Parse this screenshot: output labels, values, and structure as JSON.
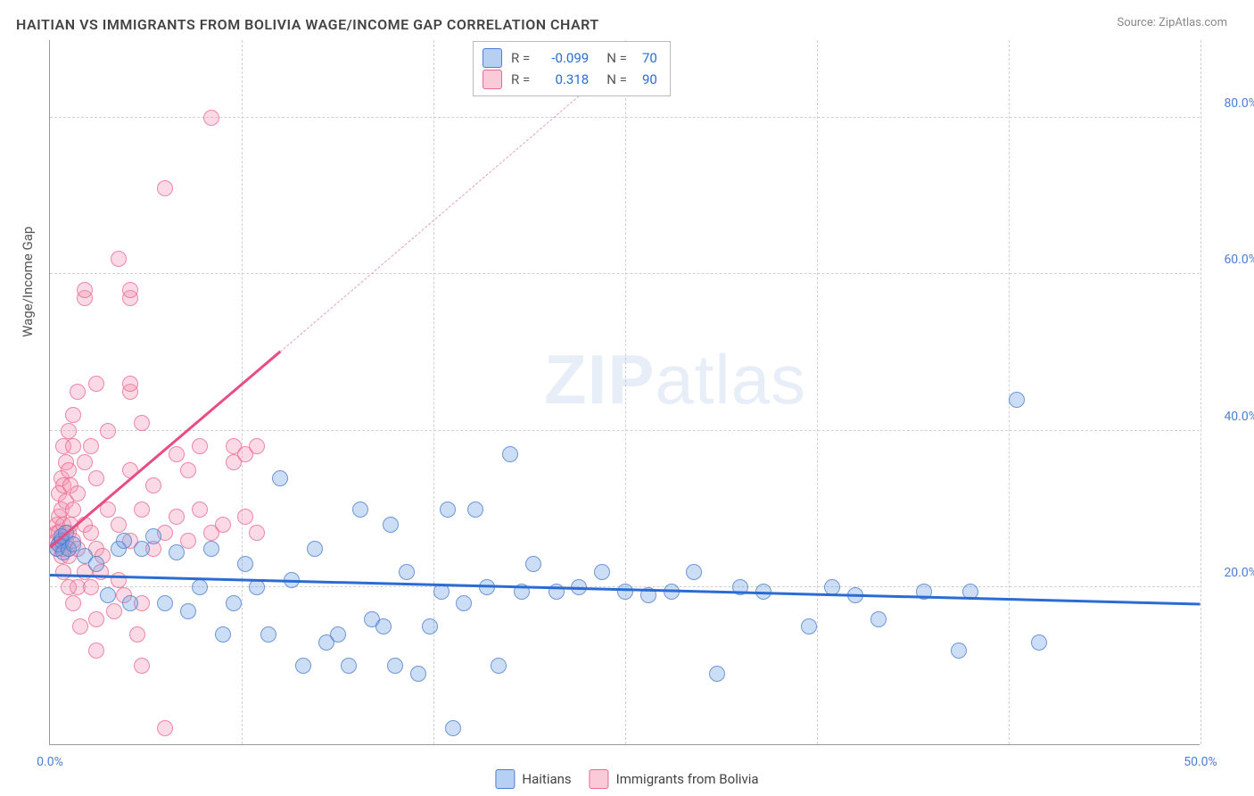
{
  "title": "HAITIAN VS IMMIGRANTS FROM BOLIVIA WAGE/INCOME GAP CORRELATION CHART",
  "source": "Source: ZipAtlas.com",
  "y_axis_label": "Wage/Income Gap",
  "watermark": {
    "bold": "ZIP",
    "rest": "atlas"
  },
  "chart": {
    "type": "scatter",
    "xlim": [
      0,
      50
    ],
    "ylim": [
      0,
      90
    ],
    "xticks": [
      0,
      8.33,
      16.67,
      25,
      33.33,
      41.67,
      50
    ],
    "xtick_labels": {
      "0": "0.0%",
      "50": "50.0%"
    },
    "yticks": [
      20,
      40,
      60,
      80
    ],
    "ytick_labels": {
      "20": "20.0%",
      "40": "40.0%",
      "60": "60.0%",
      "80": "80.0%"
    },
    "background_color": "#ffffff",
    "grid_color": "#d0d0d0",
    "axis_label_fontsize": 15,
    "tick_fontsize": 14,
    "tick_color": "#4a7fd8"
  },
  "series": [
    {
      "name": "Haitians",
      "color_fill": "rgba(110,160,230,0.35)",
      "color_stroke": "rgba(70,120,200,0.7)",
      "marker_size": 18,
      "R": "-0.099",
      "N": "70",
      "trend": {
        "x1": 0,
        "y1": 21.5,
        "x2": 50,
        "y2": 17.8,
        "color": "#2b6cd4",
        "width": 2.5,
        "dashed": false
      },
      "points": [
        [
          0.3,
          25
        ],
        [
          0.5,
          26
        ],
        [
          0.4,
          25.5
        ],
        [
          0.6,
          24.5
        ],
        [
          0.8,
          25
        ],
        [
          0.5,
          26.5
        ],
        [
          0.7,
          27
        ],
        [
          1.0,
          25.5
        ],
        [
          1.5,
          24
        ],
        [
          2.0,
          23
        ],
        [
          2.5,
          19
        ],
        [
          3.0,
          25
        ],
        [
          3.2,
          26
        ],
        [
          3.5,
          18
        ],
        [
          4.0,
          25
        ],
        [
          4.5,
          26.5
        ],
        [
          5.0,
          18
        ],
        [
          5.5,
          24.5
        ],
        [
          6.0,
          17
        ],
        [
          6.5,
          20
        ],
        [
          7.0,
          25
        ],
        [
          7.5,
          14
        ],
        [
          8.0,
          18
        ],
        [
          8.5,
          23
        ],
        [
          9.0,
          20
        ],
        [
          9.5,
          14
        ],
        [
          10.0,
          34
        ],
        [
          10.5,
          21
        ],
        [
          11.0,
          10
        ],
        [
          11.5,
          25
        ],
        [
          12.0,
          13
        ],
        [
          12.5,
          14
        ],
        [
          13.0,
          10
        ],
        [
          13.5,
          30
        ],
        [
          14.0,
          16
        ],
        [
          14.5,
          15
        ],
        [
          14.8,
          28
        ],
        [
          15.0,
          10
        ],
        [
          15.5,
          22
        ],
        [
          16.0,
          9
        ],
        [
          16.5,
          15
        ],
        [
          17.0,
          19.5
        ],
        [
          17.3,
          30
        ],
        [
          17.5,
          2
        ],
        [
          18.0,
          18
        ],
        [
          18.5,
          30
        ],
        [
          19.0,
          20
        ],
        [
          19.5,
          10
        ],
        [
          20.0,
          37
        ],
        [
          20.5,
          19.5
        ],
        [
          21.0,
          23
        ],
        [
          22.0,
          19.5
        ],
        [
          23.0,
          20
        ],
        [
          24.0,
          22
        ],
        [
          25.0,
          19.5
        ],
        [
          26.0,
          19
        ],
        [
          27.0,
          19.5
        ],
        [
          28.0,
          22
        ],
        [
          29.0,
          9
        ],
        [
          30.0,
          20
        ],
        [
          31.0,
          19.5
        ],
        [
          33.0,
          15
        ],
        [
          34.0,
          20
        ],
        [
          35.0,
          19
        ],
        [
          36.0,
          16
        ],
        [
          38.0,
          19.5
        ],
        [
          39.5,
          12
        ],
        [
          40.0,
          19.5
        ],
        [
          42.0,
          44
        ],
        [
          43.0,
          13
        ]
      ]
    },
    {
      "name": "Immigrants from Bolivia",
      "color_fill": "rgba(245,150,180,0.35)",
      "color_stroke": "rgba(230,100,140,0.7)",
      "marker_size": 18,
      "R": "0.318",
      "N": "90",
      "trend": {
        "x1": 0,
        "y1": 25,
        "x2": 10,
        "y2": 50,
        "color": "#e94b84",
        "width": 2.5,
        "dashed": false
      },
      "trend_extend": {
        "x1": 10,
        "y1": 50,
        "x2": 25.5,
        "y2": 89,
        "color": "#e9a0b8",
        "dashed": true
      },
      "points": [
        [
          0.3,
          25
        ],
        [
          0.3,
          26
        ],
        [
          0.3,
          27
        ],
        [
          0.3,
          28
        ],
        [
          0.4,
          25.5
        ],
        [
          0.4,
          27
        ],
        [
          0.4,
          29
        ],
        [
          0.4,
          32
        ],
        [
          0.5,
          24
        ],
        [
          0.5,
          26
        ],
        [
          0.5,
          30
        ],
        [
          0.5,
          34
        ],
        [
          0.6,
          25
        ],
        [
          0.6,
          28
        ],
        [
          0.6,
          33
        ],
        [
          0.6,
          38
        ],
        [
          0.7,
          26
        ],
        [
          0.7,
          31
        ],
        [
          0.7,
          36
        ],
        [
          0.8,
          24
        ],
        [
          0.8,
          27
        ],
        [
          0.8,
          35
        ],
        [
          0.8,
          40
        ],
        [
          0.9,
          28
        ],
        [
          0.9,
          33
        ],
        [
          1.0,
          26
        ],
        [
          1.0,
          30
        ],
        [
          1.0,
          38
        ],
        [
          1.0,
          42
        ],
        [
          1.2,
          25
        ],
        [
          1.2,
          32
        ],
        [
          1.2,
          45
        ],
        [
          1.2,
          20
        ],
        [
          1.5,
          28
        ],
        [
          1.5,
          36
        ],
        [
          1.5,
          57
        ],
        [
          1.5,
          58
        ],
        [
          1.8,
          27
        ],
        [
          1.8,
          38
        ],
        [
          2.0,
          25
        ],
        [
          2.0,
          34
        ],
        [
          2.0,
          46
        ],
        [
          2.0,
          16
        ],
        [
          2.0,
          12
        ],
        [
          2.5,
          30
        ],
        [
          2.5,
          40
        ],
        [
          3.0,
          28
        ],
        [
          3.0,
          62
        ],
        [
          3.0,
          21
        ],
        [
          3.5,
          26
        ],
        [
          3.5,
          35
        ],
        [
          3.5,
          57
        ],
        [
          3.5,
          58
        ],
        [
          3.5,
          45
        ],
        [
          3.5,
          46
        ],
        [
          4.0,
          30
        ],
        [
          4.0,
          41
        ],
        [
          4.0,
          10
        ],
        [
          4.0,
          18
        ],
        [
          4.5,
          25
        ],
        [
          4.5,
          33
        ],
        [
          5.0,
          27
        ],
        [
          5.0,
          71
        ],
        [
          5.0,
          2
        ],
        [
          5.5,
          29
        ],
        [
          5.5,
          37
        ],
        [
          6.0,
          26
        ],
        [
          6.0,
          35
        ],
        [
          6.5,
          38
        ],
        [
          6.5,
          30
        ],
        [
          7.0,
          27
        ],
        [
          7.0,
          80
        ],
        [
          7.5,
          28
        ],
        [
          8.0,
          36
        ],
        [
          8.0,
          38
        ],
        [
          8.5,
          29
        ],
        [
          8.5,
          37
        ],
        [
          9.0,
          38
        ],
        [
          9.0,
          27
        ],
        [
          1.0,
          18
        ],
        [
          1.3,
          15
        ],
        [
          1.8,
          20
        ],
        [
          2.2,
          22
        ],
        [
          2.8,
          17
        ],
        [
          3.2,
          19
        ],
        [
          3.8,
          14
        ],
        [
          0.8,
          20
        ],
        [
          1.5,
          22
        ],
        [
          2.3,
          24
        ],
        [
          0.6,
          22
        ]
      ]
    }
  ],
  "legend_stats": {
    "R_label": "R =",
    "N_label": "N ="
  },
  "bottom_legend": [
    {
      "label": "Haitians",
      "swatch": "blue"
    },
    {
      "label": "Immigrants from Bolivia",
      "swatch": "pink"
    }
  ]
}
